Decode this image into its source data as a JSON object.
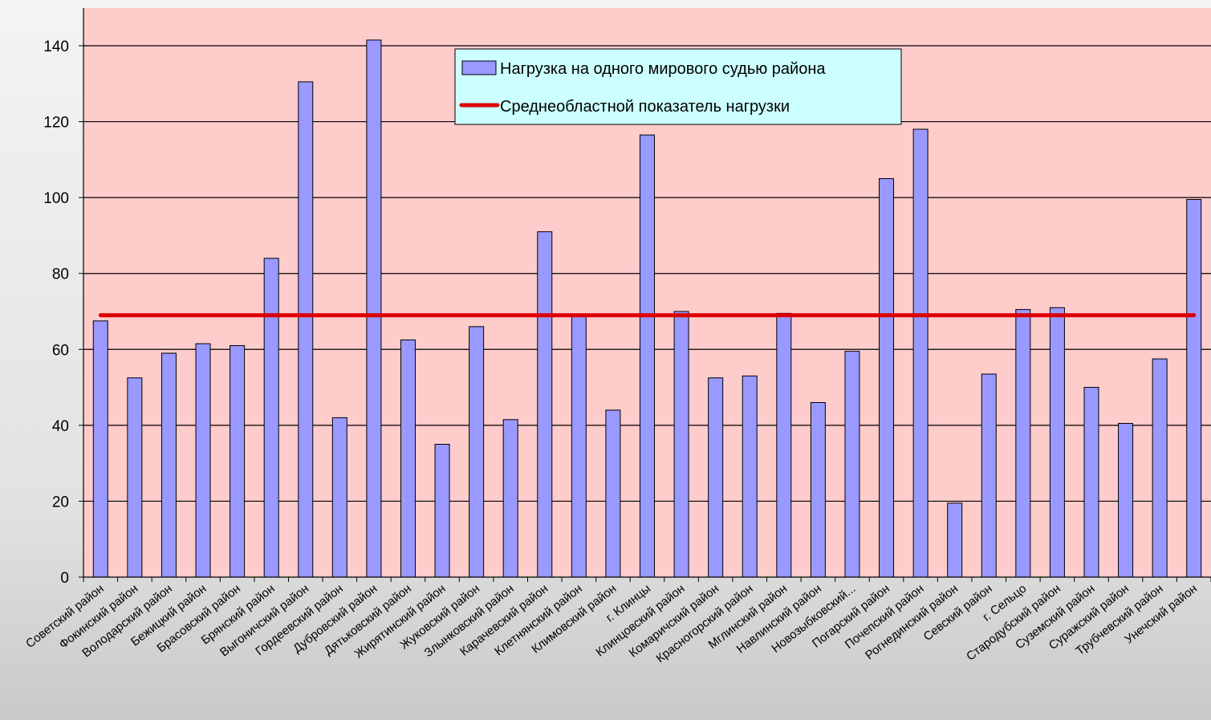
{
  "chart_data": {
    "type": "bar",
    "categories": [
      "Советский район",
      "Фокинский район",
      "Володарский район",
      "Бежицкий район",
      "Брасовский район",
      "Брянский район",
      "Выгоничский район",
      "Гордеевский район",
      "Дубровский район",
      "Дятьковский район",
      "Жирятинский район",
      "Жуковский район",
      "Злынковский район",
      "Карачевский район",
      "Клетнянский район",
      "Климовский район",
      "г. Клинцы",
      "Клинцовский район",
      "Комаричский район",
      "Красногорский район",
      "Мглинский район",
      "Навлинский район",
      "Новозыбковский...",
      "Погарский район",
      "Почепский район",
      "Рогнединский район",
      "Севский район",
      "г. Сельцо",
      "Стародубский район",
      "Суземский район",
      "Суражский район",
      "Трубчевский район",
      "Унечский район"
    ],
    "series": [
      {
        "name": "Нагрузка на одного мирового судью района",
        "type": "bar",
        "color": "#9999ff",
        "values": [
          67.5,
          52.5,
          59,
          61.5,
          61,
          84,
          130.5,
          42,
          141.5,
          62.5,
          35,
          66,
          41.5,
          91,
          69,
          44,
          116.5,
          70,
          52.5,
          53,
          69.5,
          46,
          59.5,
          105,
          118,
          19.5,
          53.5,
          70.5,
          71,
          50,
          40.5,
          57.5,
          99.5
        ]
      },
      {
        "name": "Среднеобластной показатель нагрузки",
        "type": "line",
        "color": "#dd0000",
        "value": 69
      }
    ],
    "ylim": [
      0,
      140
    ],
    "yticks": [
      0,
      20,
      40,
      60,
      80,
      100,
      120,
      140
    ],
    "grid": true,
    "legend_position": "top-center",
    "plot_background": "#ffcccc",
    "legend_background": "#ccffff"
  }
}
